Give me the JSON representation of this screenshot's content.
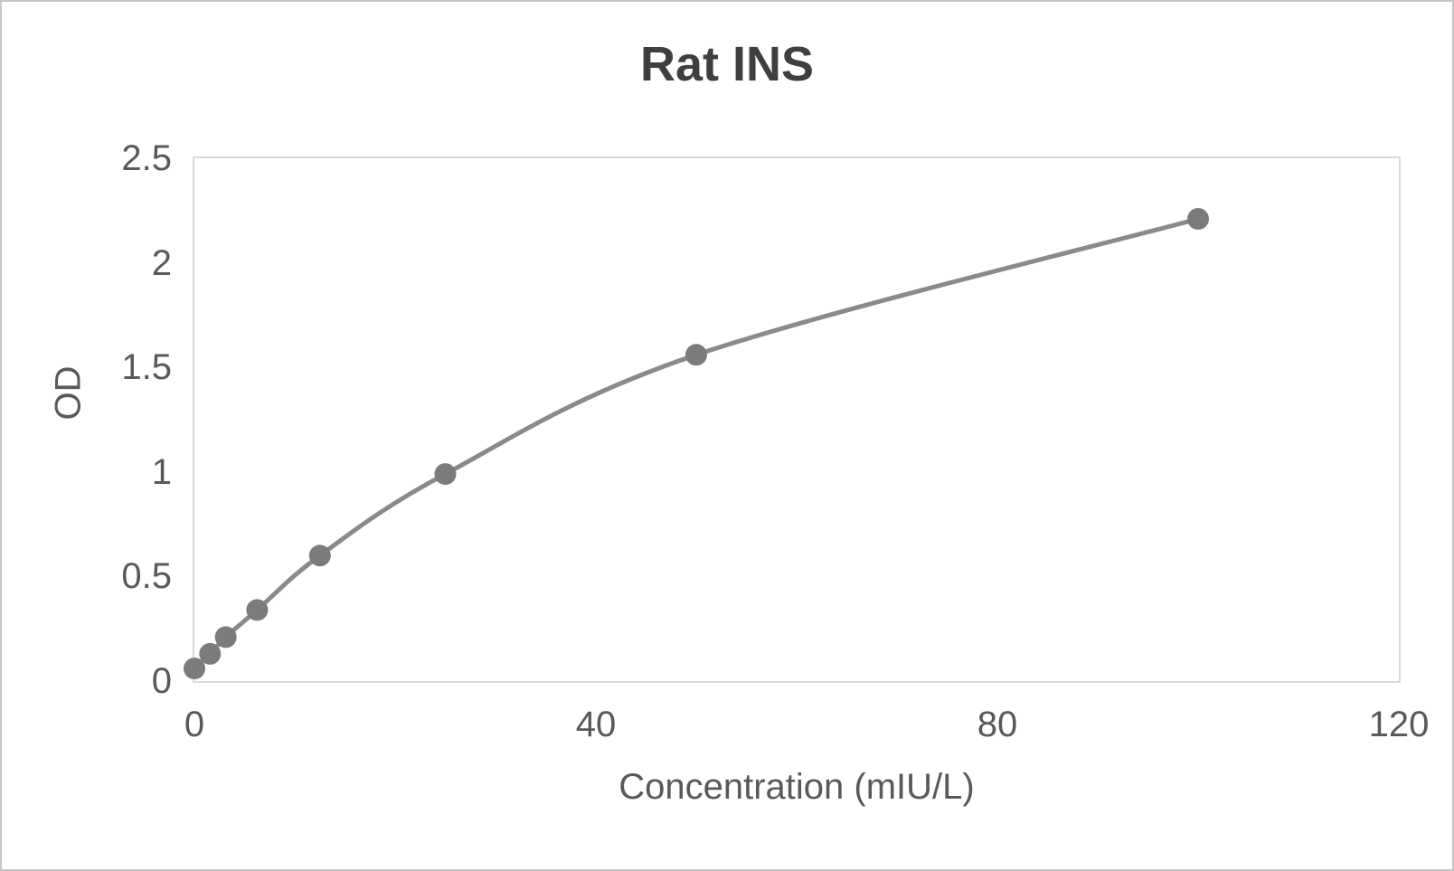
{
  "chart_data": {
    "type": "scatter",
    "subtype": "smooth-line-with-markers",
    "title": "Rat INS",
    "xlabel": "Concentration (mIU/L)",
    "ylabel": "OD",
    "x": [
      0,
      1.5625,
      3.125,
      6.25,
      12.5,
      25,
      50,
      100
    ],
    "y": [
      0.06,
      0.13,
      0.21,
      0.34,
      0.6,
      0.99,
      1.56,
      2.21
    ],
    "xlim": [
      0,
      120
    ],
    "ylim": [
      0,
      2.5
    ],
    "x_ticks": [
      0,
      40,
      80,
      120
    ],
    "x_tick_labels": [
      "0",
      "40",
      "80",
      "120"
    ],
    "y_ticks": [
      0,
      0.5,
      1,
      1.5,
      2,
      2.5
    ],
    "y_tick_labels": [
      "0",
      "0.5",
      "1",
      "1.5",
      "2",
      "2.5"
    ],
    "grid": false,
    "legend": "none",
    "colors": {
      "line": "#8a8a8a",
      "marker": "#7b7b7b",
      "tick_text": "#595959",
      "title_text": "#3f3f3f",
      "plot_border": "#d9d9d9",
      "frame_border": "#c6c6c6",
      "background": "#ffffff"
    }
  }
}
